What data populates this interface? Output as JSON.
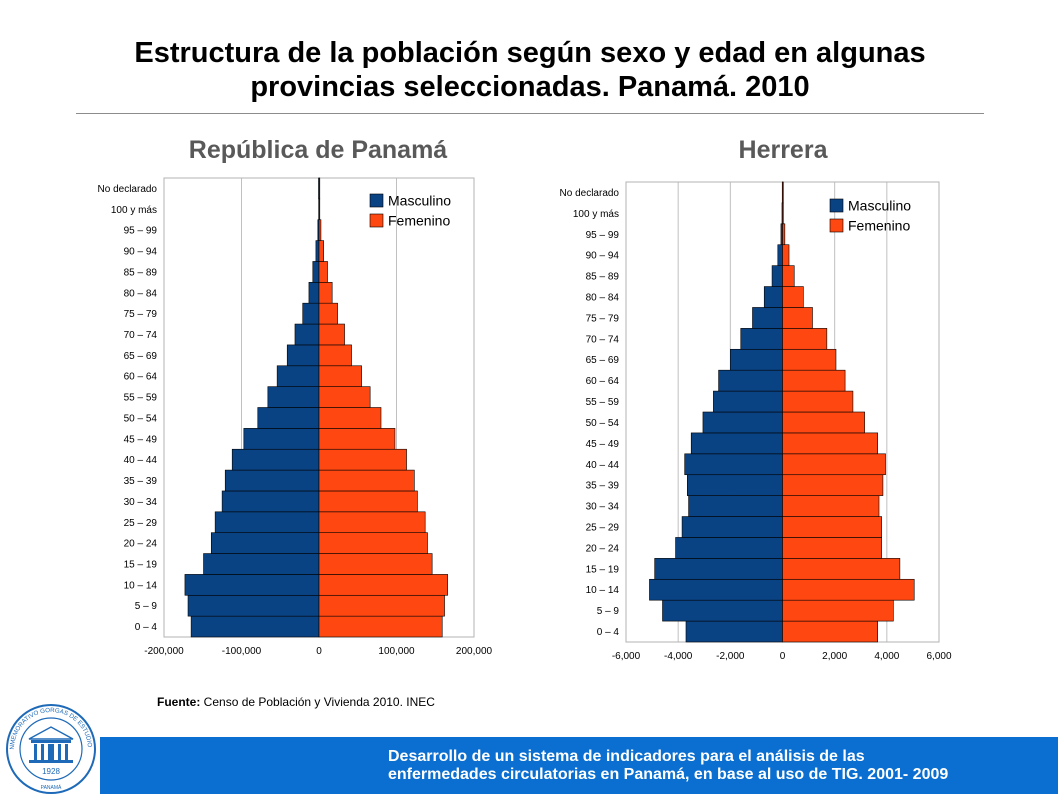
{
  "header": {
    "title_line1": "Estructura de la población según sexo y edad en algunas",
    "title_line2": "provincias seleccionadas. Panamá. 2010"
  },
  "colors": {
    "masculino": "#0a4384",
    "femenino": "#ff4712",
    "grid": "#c0c0c0"
  },
  "chart_data": [
    {
      "type": "bar",
      "orientation": "horizontal-population-pyramid",
      "title": "República de Panamá",
      "categories": [
        "0 – 4",
        "5 – 9",
        "10 – 14",
        "15 – 19",
        "20 – 24",
        "25 – 29",
        "30 – 34",
        "35 – 39",
        "40 – 44",
        "45 – 49",
        "50 – 54",
        "55 – 59",
        "60 – 64",
        "65 – 69",
        "70 – 74",
        "75 – 79",
        "80 – 84",
        "85 – 89",
        "90 – 94",
        "95 – 99",
        "100 y más",
        "No declarado"
      ],
      "series": [
        {
          "name": "Masculino",
          "values": [
            -165000,
            -169000,
            -173000,
            -149000,
            -139000,
            -134000,
            -125000,
            -121000,
            -112000,
            -97000,
            -79000,
            -66000,
            -54000,
            -41000,
            -31000,
            -21000,
            -13000,
            -8000,
            -4000,
            -1500,
            -400,
            -600
          ]
        },
        {
          "name": "Femenino",
          "values": [
            159000,
            162000,
            166000,
            146000,
            140000,
            137000,
            127000,
            123000,
            113000,
            98000,
            80000,
            66000,
            55000,
            42000,
            33000,
            24000,
            17000,
            11000,
            6000,
            2500,
            600,
            1000
          ]
        }
      ],
      "xlim": [
        -200000,
        200000
      ],
      "x_ticks": [
        -200000,
        -100000,
        0,
        100000,
        200000
      ],
      "x_tick_labels": [
        "-200,000",
        "-100,000",
        "0",
        "100,000",
        "200,000"
      ],
      "legend": "top-right",
      "grid": true
    },
    {
      "type": "bar",
      "orientation": "horizontal-population-pyramid",
      "title": "Herrera",
      "categories": [
        "0 – 4",
        "5 – 9",
        "10 – 14",
        "15 – 19",
        "20 – 24",
        "25 – 29",
        "30 – 34",
        "35 – 39",
        "40 – 44",
        "45 – 49",
        "50 – 54",
        "55 – 59",
        "60 – 64",
        "65 – 69",
        "70 – 74",
        "75 – 79",
        "80 – 84",
        "85 – 89",
        "90 – 94",
        "95 – 99",
        "100 y más",
        "No declarado"
      ],
      "series": [
        {
          "name": "Masculino",
          "values": [
            -3700,
            -4600,
            -5100,
            -4900,
            -4100,
            -3850,
            -3600,
            -3650,
            -3750,
            -3500,
            -3050,
            -2650,
            -2450,
            -2000,
            -1600,
            -1150,
            -700,
            -400,
            -180,
            -60,
            -20,
            -10
          ]
        },
        {
          "name": "Femenino",
          "values": [
            3650,
            4250,
            5050,
            4500,
            3800,
            3800,
            3700,
            3850,
            3950,
            3650,
            3150,
            2700,
            2400,
            2050,
            1700,
            1150,
            800,
            450,
            250,
            90,
            25,
            10
          ]
        }
      ],
      "xlim": [
        -6000,
        6000
      ],
      "x_ticks": [
        -6000,
        -4000,
        -2000,
        0,
        2000,
        4000,
        6000
      ],
      "x_tick_labels": [
        "-6,000",
        "-4,000",
        "-2,000",
        "0",
        "2,000",
        "4,000",
        "6,000"
      ],
      "legend": "top-right",
      "grid": true
    }
  ],
  "source": {
    "label": "Fuente:",
    "text": " Censo de Población y Vivienda  2010. INEC"
  },
  "footer": {
    "line1": "Desarrollo de un sistema de indicadores para el análisis de las",
    "line2": "enfermedades circulatorias en Panamá, en base al uso de TIG. 2001- 2009"
  },
  "logo": {
    "icon": "institute-seal-icon",
    "text_top": "INSTITUTO CONMEMORATIVO GORGAS DE ESTUDIOS DE LA SALUD",
    "year": "1928",
    "place": "PANAMÁ"
  }
}
